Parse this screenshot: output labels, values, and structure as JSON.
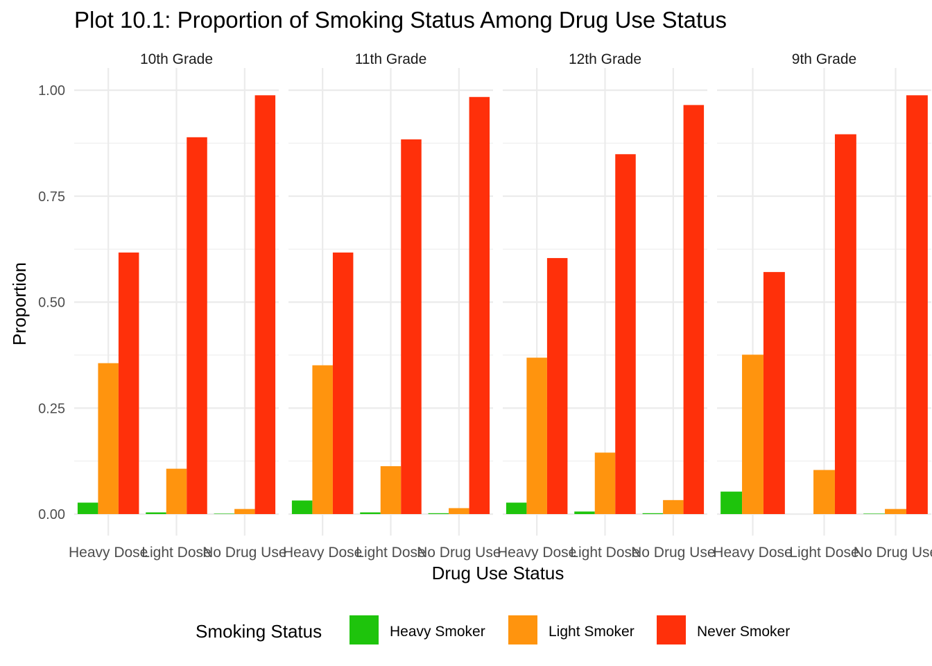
{
  "chart_data": {
    "type": "bar",
    "title": "Plot 10.1: Proportion of Smoking Status Among Drug Use Status",
    "xlabel": "Drug Use Status",
    "ylabel": "Proportion",
    "ylim": [
      0,
      1.0
    ],
    "y_ticks": [
      0.0,
      0.25,
      0.5,
      0.75,
      1.0
    ],
    "y_tick_labels": [
      "0.00",
      "0.25",
      "0.50",
      "0.75",
      "1.00"
    ],
    "grid": true,
    "legend_position": "bottom",
    "legend_title": "Smoking Status",
    "categories": [
      "Heavy Dose",
      "Light Dose",
      "No Drug Use"
    ],
    "facets": [
      {
        "label": "10th Grade",
        "series": [
          {
            "name": "Heavy Smoker",
            "values": [
              0.027,
              0.004,
              0.001
            ]
          },
          {
            "name": "Light Smoker",
            "values": [
              0.356,
              0.107,
              0.012
            ]
          },
          {
            "name": "Never Smoker",
            "values": [
              0.617,
              0.889,
              0.988
            ]
          }
        ]
      },
      {
        "label": "11th Grade",
        "series": [
          {
            "name": "Heavy Smoker",
            "values": [
              0.032,
              0.004,
              0.002
            ]
          },
          {
            "name": "Light Smoker",
            "values": [
              0.351,
              0.113,
              0.014
            ]
          },
          {
            "name": "Never Smoker",
            "values": [
              0.617,
              0.884,
              0.984
            ]
          }
        ]
      },
      {
        "label": "12th Grade",
        "series": [
          {
            "name": "Heavy Smoker",
            "values": [
              0.027,
              0.006,
              0.002
            ]
          },
          {
            "name": "Light Smoker",
            "values": [
              0.369,
              0.145,
              0.033
            ]
          },
          {
            "name": "Never Smoker",
            "values": [
              0.604,
              0.849,
              0.965
            ]
          }
        ]
      },
      {
        "label": "9th Grade",
        "series": [
          {
            "name": "Heavy Smoker",
            "values": [
              0.053,
              0.0,
              0.001
            ]
          },
          {
            "name": "Light Smoker",
            "values": [
              0.376,
              0.104,
              0.012
            ]
          },
          {
            "name": "Never Smoker",
            "values": [
              0.571,
              0.896,
              0.988
            ]
          }
        ]
      }
    ],
    "colors": {
      "Heavy Smoker": "#1ec40c",
      "Light Smoker": "#ff940e",
      "Never Smoker": "#ff300a"
    }
  }
}
